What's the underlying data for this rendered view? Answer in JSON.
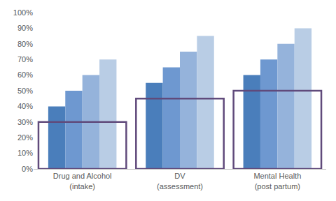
{
  "chart_data": {
    "type": "bar",
    "categories": [
      "Drug and Alcohol (intake)",
      "DV (assessment)",
      "Mental Health (post partum)"
    ],
    "series": [
      {
        "color": "#4a7ebb",
        "values": [
          40,
          55,
          60
        ]
      },
      {
        "color": "#6e98d0",
        "values": [
          50,
          65,
          70
        ]
      },
      {
        "color": "#95b3db",
        "values": [
          60,
          75,
          80
        ]
      },
      {
        "color": "#b9cde5",
        "values": [
          70,
          85,
          90
        ]
      },
      {
        "color": "#604a7b",
        "marker": "outline",
        "values": [
          30,
          45,
          50
        ]
      }
    ],
    "ylim": [
      0,
      100
    ],
    "yticks": [
      {
        "value": 0,
        "label": "0%"
      },
      {
        "value": 10,
        "label": "10%"
      },
      {
        "value": 20,
        "label": "20%"
      },
      {
        "value": 30,
        "label": "30%"
      },
      {
        "value": 40,
        "label": "40%"
      },
      {
        "value": 50,
        "label": "50%"
      },
      {
        "value": 60,
        "label": "60%"
      },
      {
        "value": 70,
        "label": "70%"
      },
      {
        "value": 80,
        "label": "80%"
      },
      {
        "value": 90,
        "label": "90%"
      },
      {
        "value": 100,
        "label": "100%"
      }
    ],
    "grid": false
  }
}
